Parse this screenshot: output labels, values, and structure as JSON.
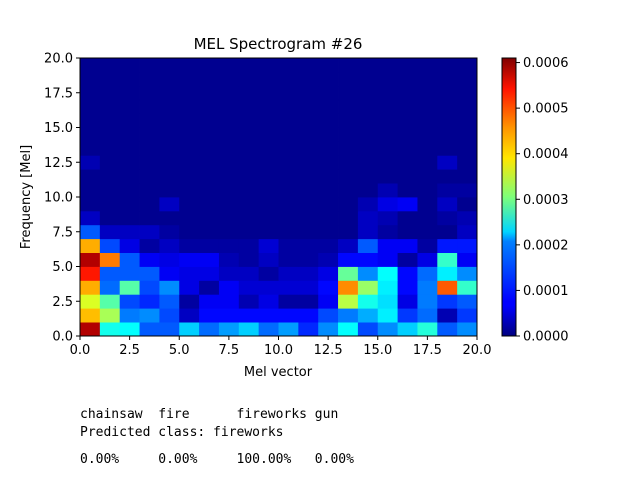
{
  "chart_data": {
    "type": "heatmap",
    "title": "MEL Spectrogram #26",
    "xlabel": "Mel vector",
    "ylabel": "Frequency [Mel]",
    "xlim": [
      0,
      20
    ],
    "ylim": [
      0,
      20
    ],
    "x_ticks": [
      "0.0",
      "2.5",
      "5.0",
      "7.5",
      "10.0",
      "12.5",
      "15.0",
      "17.5",
      "20.0"
    ],
    "y_ticks": [
      "0.0",
      "2.5",
      "5.0",
      "7.5",
      "10.0",
      "12.5",
      "15.0",
      "17.5",
      "20.0"
    ],
    "colormap": "jet",
    "colorbar": {
      "min": 0.0,
      "max": 0.00061,
      "ticks": [
        "0.0000",
        "0.0001",
        "0.0002",
        "0.0003",
        "0.0004",
        "0.0005",
        "0.0006"
      ]
    },
    "grid": false,
    "rows_from_bottom": [
      [
        0.00058,
        0.00024,
        0.00023,
        0.00013,
        0.00013,
        0.0002,
        0.00014,
        0.00017,
        0.0002,
        0.00014,
        0.00017,
        0.0001,
        0.00016,
        0.00023,
        0.00012,
        0.00016,
        0.0002,
        0.00025,
        0.00013,
        0.00016
      ],
      [
        0.00042,
        0.00033,
        0.00015,
        0.00016,
        0.00012,
        4e-05,
        8e-05,
        8e-05,
        8e-05,
        8e-05,
        8e-05,
        8e-05,
        0.00012,
        0.00015,
        0.00018,
        0.00022,
        0.00011,
        0.00014,
        3e-05,
        0.00011
      ],
      [
        0.00036,
        0.00028,
        0.00012,
        0.0001,
        0.00013,
        2e-05,
        7e-05,
        7e-05,
        3e-05,
        6e-05,
        2e-05,
        2e-05,
        7e-05,
        0.00034,
        0.00024,
        0.00021,
        6e-05,
        0.00015,
        0.00011,
        0.00013
      ],
      [
        0.00043,
        0.00014,
        0.00028,
        0.00012,
        0.00016,
        6e-05,
        2e-05,
        7e-05,
        5e-05,
        5e-05,
        5e-05,
        5e-05,
        8e-05,
        0.00045,
        0.00032,
        0.00022,
        8e-05,
        0.00015,
        0.00048,
        0.00026
      ],
      [
        0.00052,
        0.00013,
        0.00013,
        0.00013,
        7e-05,
        6e-05,
        6e-05,
        4e-05,
        4e-05,
        2e-05,
        4e-05,
        4e-05,
        6e-05,
        0.00029,
        0.00016,
        0.00023,
        8e-05,
        0.00014,
        0.00022,
        0.00016
      ],
      [
        0.00058,
        0.00046,
        0.00013,
        7e-05,
        6e-05,
        7e-05,
        7e-05,
        3e-05,
        2e-05,
        4e-05,
        2e-05,
        2e-05,
        3e-05,
        8e-05,
        8e-05,
        7e-05,
        2e-05,
        6e-05,
        0.00026,
        7e-05
      ],
      [
        0.00043,
        0.00012,
        6e-05,
        2e-05,
        4e-05,
        2e-05,
        2e-05,
        2e-05,
        2e-05,
        5e-05,
        2e-05,
        2e-05,
        2e-05,
        4e-05,
        0.00013,
        7e-05,
        7e-05,
        2e-05,
        9e-05,
        9e-05
      ],
      [
        0.00013,
        4e-05,
        4e-05,
        4e-05,
        2e-05,
        1e-05,
        1e-05,
        1e-05,
        1e-05,
        1e-05,
        1e-05,
        1e-05,
        1e-05,
        1e-05,
        4e-05,
        2e-05,
        1e-05,
        1e-05,
        1e-05,
        4e-05
      ],
      [
        4e-05,
        1e-05,
        1e-05,
        1e-05,
        1e-05,
        1e-05,
        1e-05,
        1e-05,
        1e-05,
        1e-05,
        1e-05,
        1e-05,
        1e-05,
        1e-05,
        4e-05,
        3e-05,
        1e-05,
        1e-05,
        2e-05,
        3e-05
      ],
      [
        1e-05,
        1e-05,
        1e-05,
        1e-05,
        4e-05,
        1e-05,
        1e-05,
        1e-05,
        1e-05,
        1e-05,
        1e-05,
        1e-05,
        1e-05,
        1e-05,
        3e-05,
        6e-05,
        7e-05,
        1e-05,
        4e-05,
        1e-05
      ],
      [
        1e-05,
        1e-05,
        1e-05,
        1e-05,
        1e-05,
        1e-05,
        1e-05,
        1e-05,
        1e-05,
        1e-05,
        1e-05,
        1e-05,
        1e-05,
        1e-05,
        1e-05,
        3e-05,
        1e-05,
        1e-05,
        2e-05,
        2e-05
      ],
      [
        1e-05,
        1e-05,
        1e-05,
        1e-05,
        1e-05,
        1e-05,
        1e-05,
        1e-05,
        1e-05,
        1e-05,
        1e-05,
        1e-05,
        1e-05,
        1e-05,
        1e-05,
        1e-05,
        1e-05,
        1e-05,
        1e-05,
        1e-05
      ],
      [
        3e-05,
        1e-05,
        1e-05,
        1e-05,
        1e-05,
        1e-05,
        1e-05,
        1e-05,
        1e-05,
        1e-05,
        1e-05,
        1e-05,
        1e-05,
        1e-05,
        1e-05,
        1e-05,
        1e-05,
        1e-05,
        4e-05,
        1e-05
      ],
      [
        1e-05,
        1e-05,
        1e-05,
        1e-05,
        1e-05,
        1e-05,
        1e-05,
        1e-05,
        1e-05,
        1e-05,
        1e-05,
        1e-05,
        1e-05,
        1e-05,
        1e-05,
        1e-05,
        1e-05,
        1e-05,
        1e-05,
        1e-05
      ],
      [
        1e-05,
        1e-05,
        1e-05,
        1e-05,
        1e-05,
        1e-05,
        1e-05,
        1e-05,
        1e-05,
        1e-05,
        1e-05,
        1e-05,
        1e-05,
        1e-05,
        1e-05,
        1e-05,
        1e-05,
        1e-05,
        1e-05,
        1e-05
      ],
      [
        1e-05,
        1e-05,
        1e-05,
        1e-05,
        1e-05,
        1e-05,
        1e-05,
        1e-05,
        1e-05,
        1e-05,
        1e-05,
        1e-05,
        1e-05,
        1e-05,
        1e-05,
        1e-05,
        1e-05,
        1e-05,
        1e-05,
        1e-05
      ],
      [
        1e-05,
        1e-05,
        1e-05,
        1e-05,
        1e-05,
        1e-05,
        1e-05,
        1e-05,
        1e-05,
        1e-05,
        1e-05,
        1e-05,
        1e-05,
        1e-05,
        1e-05,
        1e-05,
        1e-05,
        1e-05,
        1e-05,
        1e-05
      ],
      [
        1e-05,
        1e-05,
        1e-05,
        1e-05,
        1e-05,
        1e-05,
        1e-05,
        1e-05,
        1e-05,
        1e-05,
        1e-05,
        1e-05,
        1e-05,
        1e-05,
        1e-05,
        1e-05,
        1e-05,
        1e-05,
        1e-05,
        1e-05
      ],
      [
        1e-05,
        1e-05,
        1e-05,
        1e-05,
        1e-05,
        1e-05,
        1e-05,
        1e-05,
        1e-05,
        1e-05,
        1e-05,
        1e-05,
        1e-05,
        1e-05,
        1e-05,
        1e-05,
        1e-05,
        1e-05,
        1e-05,
        1e-05
      ],
      [
        1e-05,
        1e-05,
        1e-05,
        1e-05,
        1e-05,
        1e-05,
        1e-05,
        1e-05,
        1e-05,
        1e-05,
        1e-05,
        1e-05,
        1e-05,
        1e-05,
        1e-05,
        1e-05,
        1e-05,
        1e-05,
        1e-05,
        1e-05
      ]
    ]
  },
  "classification": {
    "classes": [
      {
        "name": "chainsaw",
        "prob": "0.00%"
      },
      {
        "name": "fire",
        "prob": "0.00%"
      },
      {
        "name": "fireworks",
        "prob": "100.00%"
      },
      {
        "name": "gun",
        "prob": "0.00%"
      }
    ],
    "predicted_label": "Predicted class: fireworks"
  }
}
